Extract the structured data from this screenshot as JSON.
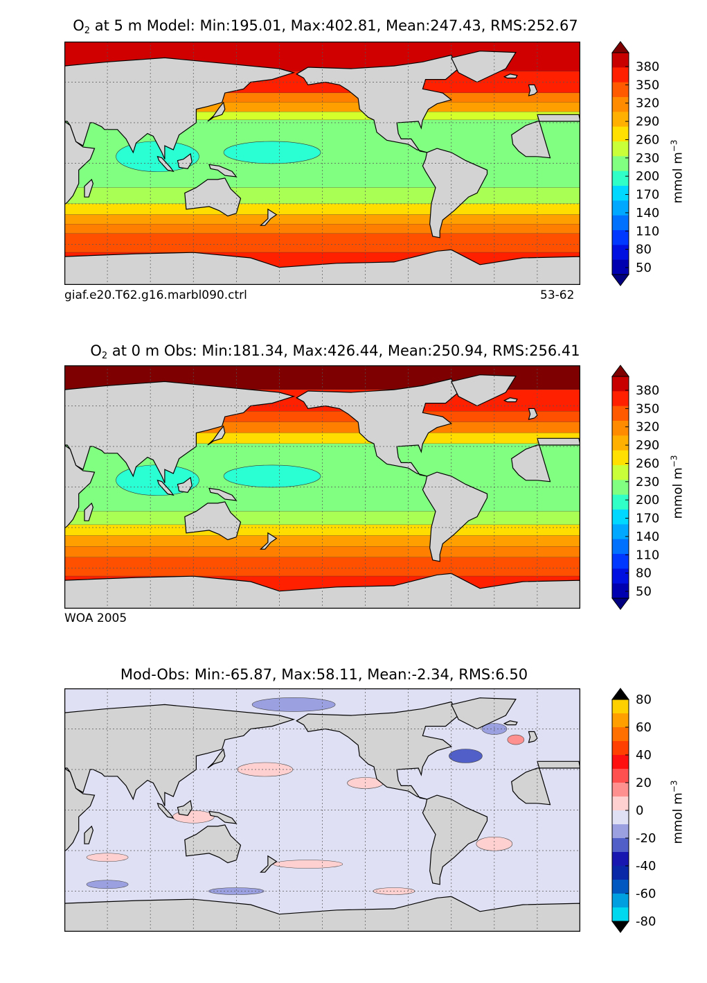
{
  "chart_data": [
    {
      "type": "heatmap",
      "title_prefix": "O",
      "title_sub": "2",
      "title_rest": " at 5 m Model: Min:195.01, Max:402.81, Mean:247.43, RMS:252.67",
      "footer_left": "giaf.e20.T62.g16.marbl090.ctrl",
      "footer_right": "53-62",
      "colorbar_label": "mmol m",
      "colorbar_label_exp": "−3",
      "colorbar_ticks": [
        "380",
        "350",
        "320",
        "290",
        "260",
        "230",
        "200",
        "170",
        "140",
        "110",
        "80",
        "50"
      ],
      "levels": [
        395,
        380,
        365,
        350,
        335,
        320,
        305,
        290,
        275,
        260,
        245,
        230,
        215,
        200,
        185,
        170,
        155,
        140,
        125,
        110,
        95,
        80,
        65,
        50,
        35
      ],
      "colors": [
        "#7f0000",
        "#c00000",
        "#ff2000",
        "#ff5000",
        "#ff8000",
        "#ffa000",
        "#ffdd00",
        "#d4ff2a",
        "#aaff55",
        "#80ff80",
        "#2affd4",
        "#00d4ff",
        "#00a0ff",
        "#0060ff",
        "#0020ff",
        "#0000c8",
        "#000080"
      ],
      "colorbar_colors": [
        "#7f0000",
        "#c80000",
        "#ff2000",
        "#ff5a00",
        "#ff8c00",
        "#ffb000",
        "#ffe000",
        "#c8ff38",
        "#80ff80",
        "#30ffc8",
        "#00d8ff",
        "#00a8ff",
        "#0070ff",
        "#0038ff",
        "#0010e0",
        "#0000b0",
        "#000080"
      ]
    },
    {
      "type": "heatmap",
      "title_prefix": "O",
      "title_sub": "2",
      "title_rest": " at 0 m Obs: Min:181.34, Max:426.44, Mean:250.94, RMS:256.41",
      "footer_left": "WOA 2005",
      "footer_right": "",
      "colorbar_label": "mmol m",
      "colorbar_label_exp": "−3",
      "colorbar_ticks": [
        "380",
        "350",
        "320",
        "290",
        "260",
        "230",
        "200",
        "170",
        "140",
        "110",
        "80",
        "50"
      ]
    },
    {
      "type": "heatmap",
      "title_prefix": "",
      "title_sub": "",
      "title_rest": "Mod-Obs: Min:-65.87, Max:58.11, Mean:-2.34, RMS:6.50",
      "footer_left": "",
      "footer_right": "",
      "colorbar_label": "mmol m",
      "colorbar_label_exp": "−3",
      "colorbar_ticks": [
        "80",
        "60",
        "40",
        "20",
        "0",
        "-20",
        "-40",
        "-60",
        "-80"
      ],
      "colorbar_colors": [
        "#ffff00",
        "#ffd000",
        "#ffa000",
        "#ff7000",
        "#ff4000",
        "#ff1010",
        "#ff5050",
        "#ff9090",
        "#ffd0d0",
        "#e0e0f4",
        "#9aa0e0",
        "#5060c8",
        "#1818b0",
        "#0828a8",
        "#0058c0",
        "#00a0e0",
        "#00d8f0",
        "#00ffff"
      ]
    }
  ],
  "icons": {
    "extend_top": "triangle-up-icon",
    "extend_bottom": "triangle-down-icon"
  }
}
